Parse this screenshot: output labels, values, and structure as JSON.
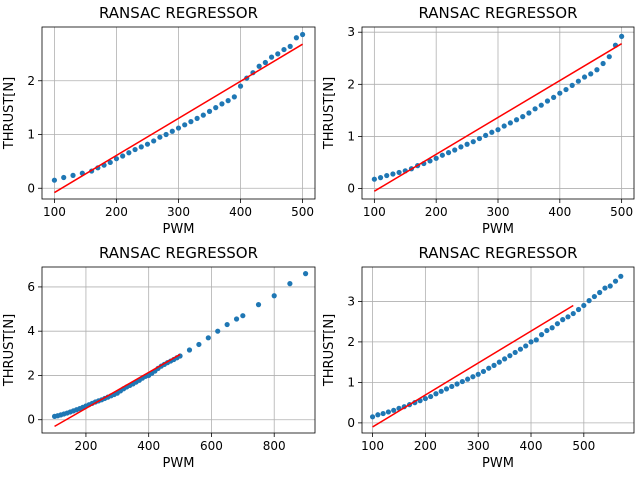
{
  "chart_data": [
    {
      "type": "scatter",
      "title": "RANSAC REGRESSOR",
      "xlabel": "PWM",
      "ylabel": "THRUST[N]",
      "xlim": [
        80,
        520
      ],
      "ylim": [
        -0.2,
        3.0
      ],
      "xticks": [
        100,
        200,
        300,
        400,
        500
      ],
      "yticks": [
        0,
        1,
        2
      ],
      "grid": true,
      "points_color": "#1f77b4",
      "line_color": "#ff0000",
      "line": {
        "x": [
          100,
          500
        ],
        "y": [
          -0.08,
          2.68
        ]
      },
      "x": [
        100,
        115,
        130,
        145,
        160,
        170,
        180,
        190,
        200,
        210,
        220,
        230,
        240,
        250,
        260,
        270,
        280,
        290,
        300,
        310,
        320,
        330,
        340,
        350,
        360,
        370,
        380,
        390,
        400,
        410,
        420,
        430,
        440,
        450,
        460,
        470,
        480,
        490,
        500
      ],
      "y": [
        0.15,
        0.2,
        0.24,
        0.28,
        0.32,
        0.38,
        0.43,
        0.48,
        0.55,
        0.6,
        0.66,
        0.72,
        0.77,
        0.82,
        0.88,
        0.95,
        1.0,
        1.06,
        1.12,
        1.18,
        1.24,
        1.3,
        1.36,
        1.43,
        1.5,
        1.57,
        1.63,
        1.7,
        1.9,
        2.05,
        2.15,
        2.27,
        2.34,
        2.44,
        2.5,
        2.58,
        2.64,
        2.8,
        2.86
      ]
    },
    {
      "type": "scatter",
      "title": "RANSAC REGRESSOR",
      "xlabel": "PWM",
      "ylabel": "THRUST[N]",
      "xlim": [
        80,
        520
      ],
      "ylim": [
        -0.2,
        3.1
      ],
      "xticks": [
        100,
        200,
        300,
        400,
        500
      ],
      "yticks": [
        0,
        1,
        2,
        3
      ],
      "grid": true,
      "points_color": "#1f77b4",
      "line_color": "#ff0000",
      "line": {
        "x": [
          100,
          500
        ],
        "y": [
          -0.05,
          2.78
        ]
      },
      "x": [
        100,
        110,
        120,
        130,
        140,
        150,
        160,
        170,
        180,
        190,
        200,
        210,
        220,
        230,
        240,
        250,
        260,
        270,
        280,
        290,
        300,
        310,
        320,
        330,
        340,
        350,
        360,
        370,
        380,
        390,
        400,
        410,
        420,
        430,
        440,
        450,
        460,
        470,
        480,
        490,
        500
      ],
      "y": [
        0.18,
        0.21,
        0.25,
        0.28,
        0.31,
        0.34,
        0.38,
        0.44,
        0.48,
        0.53,
        0.58,
        0.64,
        0.69,
        0.74,
        0.8,
        0.85,
        0.9,
        0.96,
        1.02,
        1.08,
        1.13,
        1.2,
        1.26,
        1.32,
        1.38,
        1.45,
        1.53,
        1.6,
        1.68,
        1.75,
        1.83,
        1.9,
        1.98,
        2.06,
        2.14,
        2.2,
        2.28,
        2.4,
        2.53,
        2.75,
        2.92
      ]
    },
    {
      "type": "scatter",
      "title": "RANSAC REGRESSOR",
      "xlabel": "PWM",
      "ylabel": "THRUST[N]",
      "xlim": [
        60,
        930
      ],
      "ylim": [
        -0.6,
        6.9
      ],
      "xticks": [
        200,
        400,
        600,
        800
      ],
      "yticks": [
        0,
        2,
        4,
        6
      ],
      "grid": true,
      "points_color": "#1f77b4",
      "line_color": "#ff0000",
      "line": {
        "x": [
          100,
          500
        ],
        "y": [
          -0.3,
          2.95
        ]
      },
      "x": [
        100,
        110,
        120,
        130,
        140,
        150,
        160,
        170,
        180,
        190,
        200,
        210,
        220,
        230,
        240,
        250,
        260,
        270,
        280,
        290,
        300,
        310,
        320,
        330,
        340,
        350,
        360,
        370,
        380,
        390,
        400,
        410,
        420,
        430,
        440,
        450,
        460,
        470,
        480,
        490,
        500,
        530,
        560,
        590,
        620,
        650,
        680,
        700,
        750,
        800,
        850,
        900
      ],
      "y": [
        0.15,
        0.18,
        0.22,
        0.26,
        0.3,
        0.35,
        0.4,
        0.45,
        0.5,
        0.56,
        0.62,
        0.68,
        0.74,
        0.8,
        0.85,
        0.9,
        0.96,
        1.02,
        1.08,
        1.14,
        1.2,
        1.3,
        1.4,
        1.48,
        1.55,
        1.62,
        1.7,
        1.78,
        1.88,
        1.96,
        2.0,
        2.1,
        2.2,
        2.32,
        2.42,
        2.5,
        2.58,
        2.65,
        2.72,
        2.8,
        2.88,
        3.15,
        3.4,
        3.7,
        4.0,
        4.3,
        4.55,
        4.7,
        5.2,
        5.6,
        6.15,
        6.6
      ]
    },
    {
      "type": "scatter",
      "title": "RANSAC REGRESSOR",
      "xlabel": "PWM",
      "ylabel": "THRUST[N]",
      "xlim": [
        80,
        595
      ],
      "ylim": [
        -0.25,
        3.85
      ],
      "xticks": [
        100,
        200,
        300,
        400,
        500
      ],
      "yticks": [
        0,
        1,
        2,
        3
      ],
      "grid": true,
      "points_color": "#1f77b4",
      "line_color": "#ff0000",
      "line": {
        "x": [
          100,
          480
        ],
        "y": [
          -0.1,
          2.9
        ]
      },
      "x": [
        100,
        110,
        120,
        130,
        140,
        150,
        160,
        170,
        180,
        190,
        200,
        210,
        220,
        230,
        240,
        250,
        260,
        270,
        280,
        290,
        300,
        310,
        320,
        330,
        340,
        350,
        360,
        370,
        380,
        390,
        400,
        410,
        420,
        430,
        440,
        450,
        460,
        470,
        480,
        490,
        500,
        510,
        520,
        530,
        540,
        550,
        560,
        570
      ],
      "y": [
        0.15,
        0.2,
        0.23,
        0.27,
        0.31,
        0.36,
        0.4,
        0.45,
        0.5,
        0.55,
        0.6,
        0.65,
        0.72,
        0.78,
        0.84,
        0.9,
        0.96,
        1.02,
        1.08,
        1.14,
        1.2,
        1.27,
        1.35,
        1.42,
        1.5,
        1.58,
        1.66,
        1.74,
        1.82,
        1.9,
        2.0,
        2.05,
        2.18,
        2.28,
        2.35,
        2.45,
        2.55,
        2.62,
        2.7,
        2.8,
        2.9,
        3.02,
        3.12,
        3.22,
        3.33,
        3.38,
        3.5,
        3.62
      ]
    }
  ]
}
